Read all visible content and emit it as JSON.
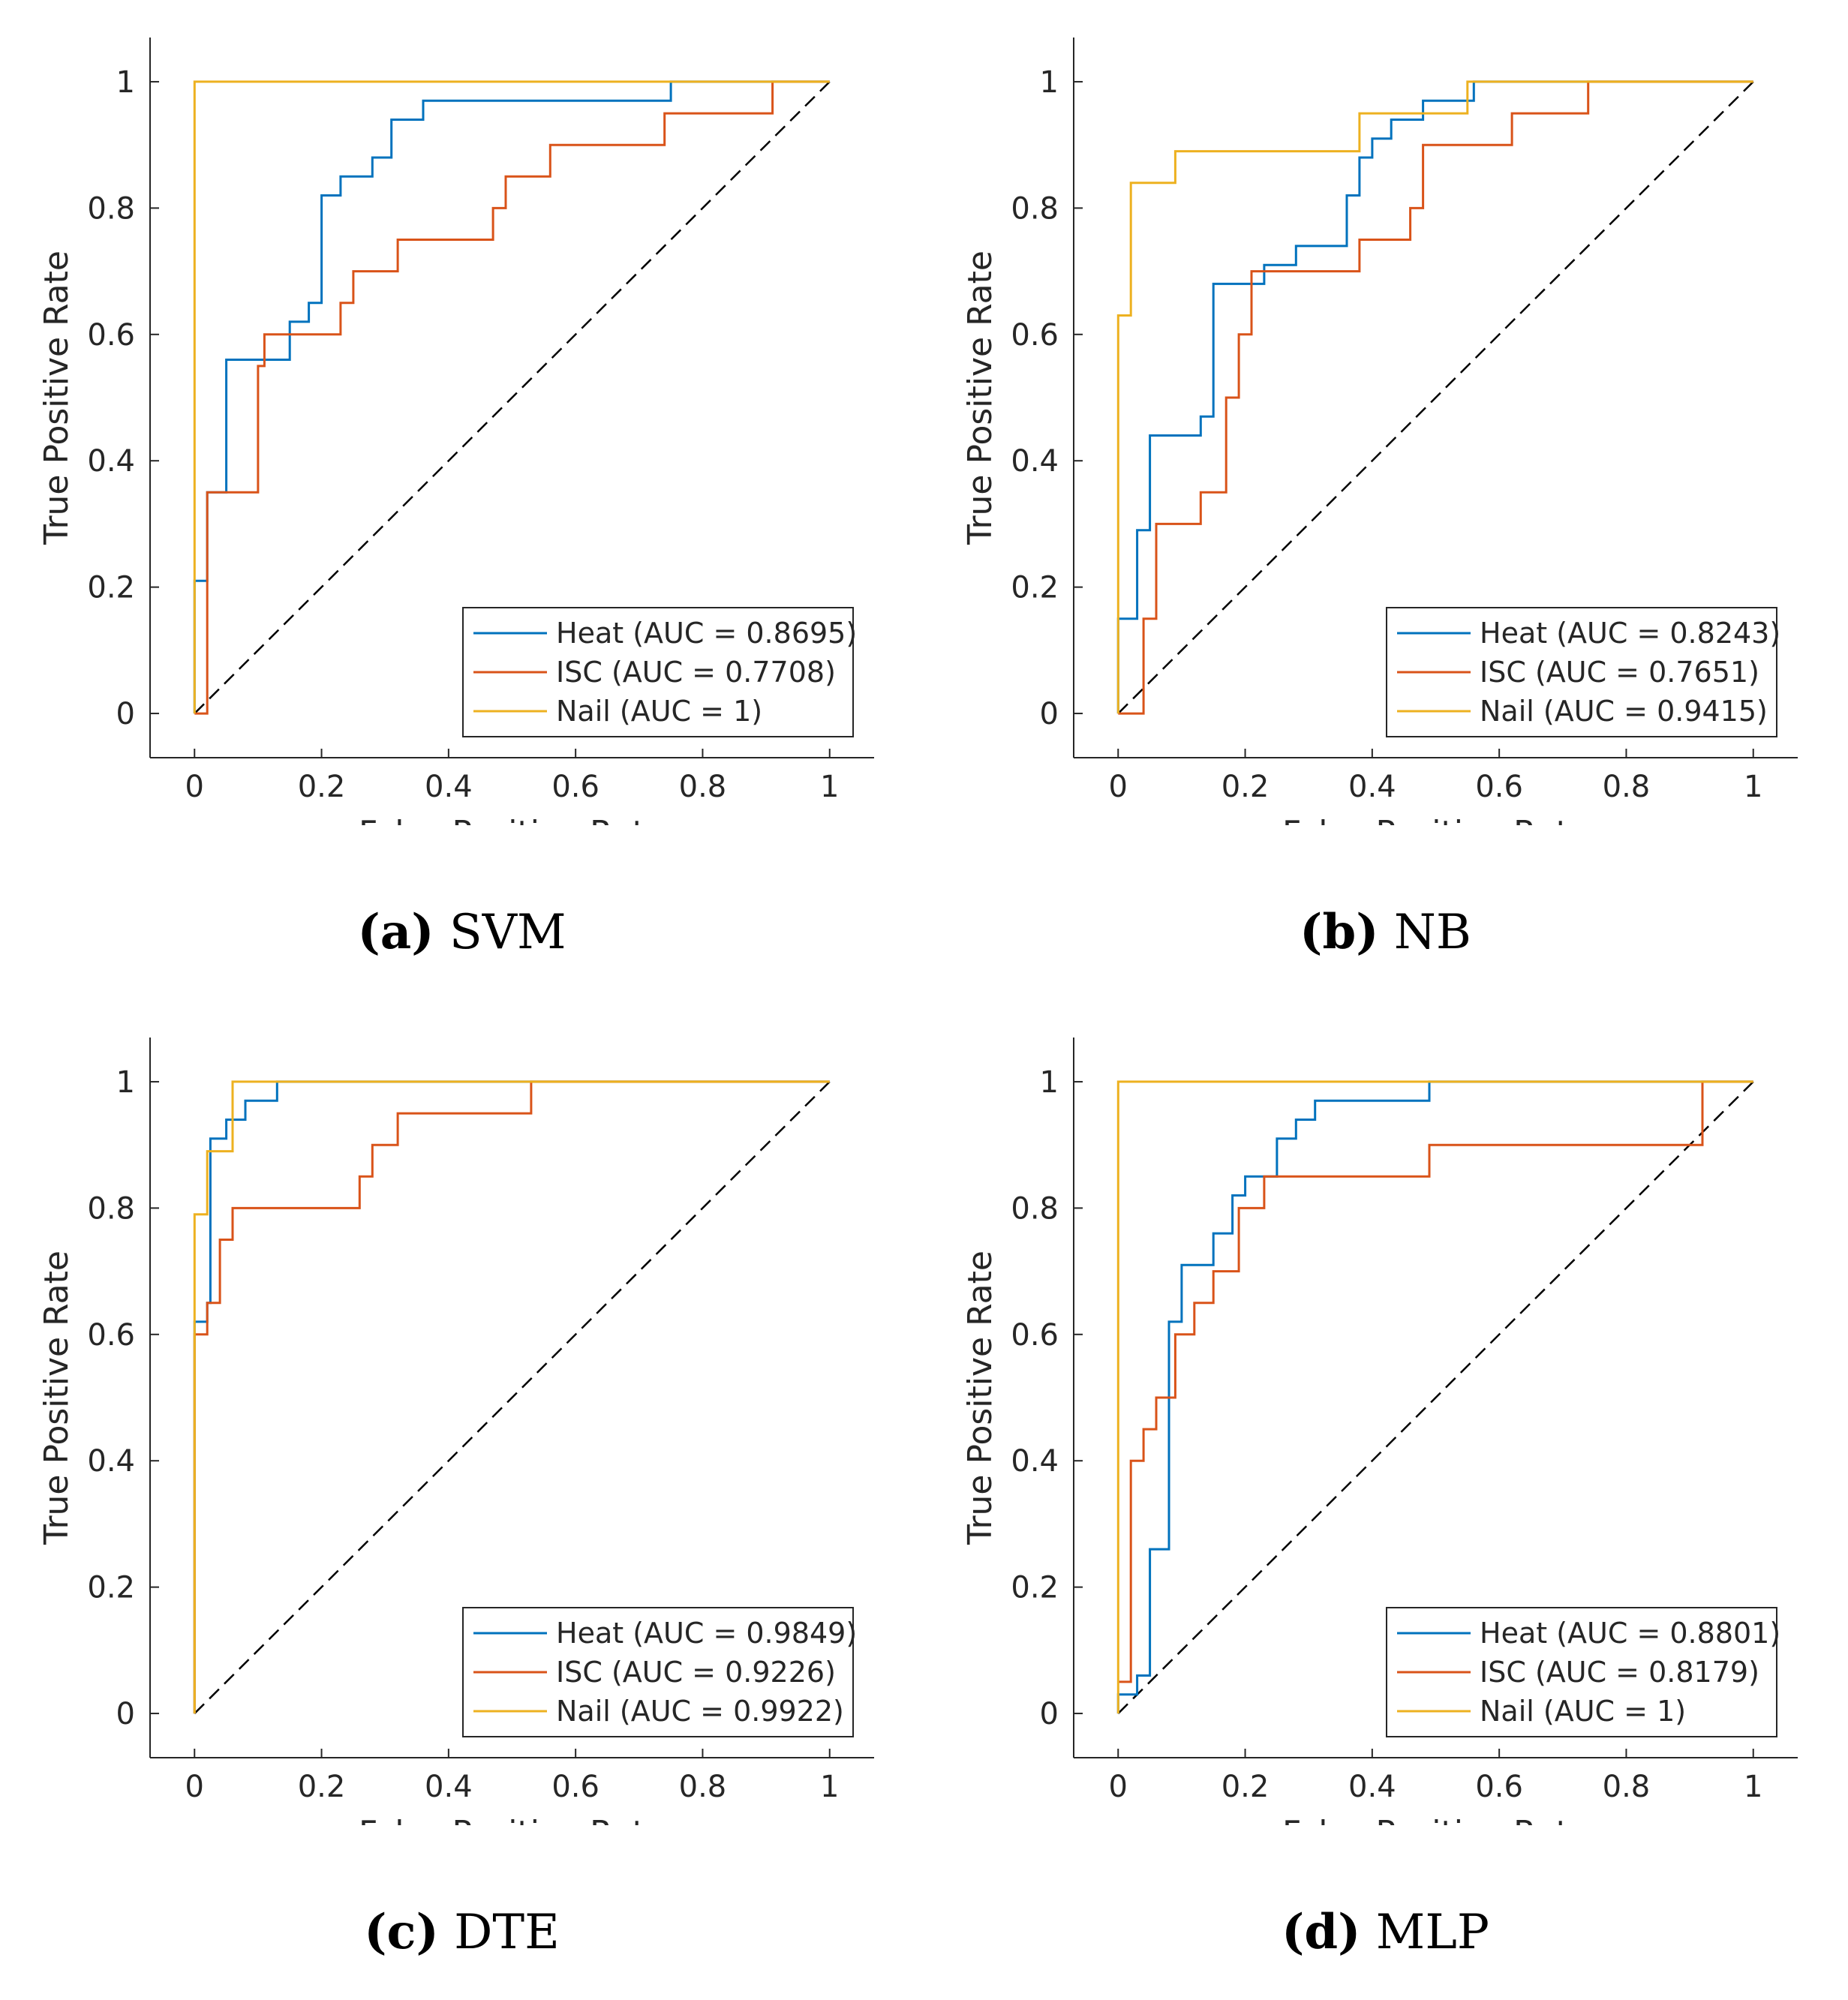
{
  "colors": {
    "heat": "#0072BD",
    "isc": "#D95319",
    "nail": "#EDB120",
    "diag": "#000000",
    "axis": "#262626"
  },
  "chart_data": [
    {
      "type": "line",
      "caption_letter": "(a)",
      "caption_title": "SVM",
      "xlabel": "False Positive Rate",
      "ylabel": "True Positive Rate",
      "xlim": [
        -0.07,
        1.07
      ],
      "ylim": [
        -0.07,
        1.07
      ],
      "xticks": [
        "0",
        "0.2",
        "0.4",
        "0.6",
        "0.8",
        "1"
      ],
      "yticks": [
        "0",
        "0.2",
        "0.4",
        "0.6",
        "0.8",
        "1"
      ],
      "legend_position": "bottom-right",
      "series": [
        {
          "name": "Heat (AUC = 0.8695)",
          "color_key": "heat",
          "x": [
            0,
            0,
            0.02,
            0.02,
            0.05,
            0.05,
            0.15,
            0.15,
            0.18,
            0.18,
            0.2,
            0.2,
            0.23,
            0.23,
            0.28,
            0.28,
            0.31,
            0.31,
            0.36,
            0.36,
            0.75,
            0.75,
            1
          ],
          "y": [
            0,
            0.21,
            0.21,
            0.35,
            0.35,
            0.56,
            0.56,
            0.62,
            0.62,
            0.65,
            0.65,
            0.82,
            0.82,
            0.85,
            0.85,
            0.88,
            0.88,
            0.94,
            0.94,
            0.97,
            0.97,
            1,
            1
          ]
        },
        {
          "name": "ISC (AUC = 0.7708)",
          "color_key": "isc",
          "x": [
            0,
            0.02,
            0.02,
            0.1,
            0.1,
            0.11,
            0.11,
            0.23,
            0.23,
            0.25,
            0.25,
            0.32,
            0.32,
            0.47,
            0.47,
            0.49,
            0.49,
            0.56,
            0.56,
            0.74,
            0.74,
            0.91,
            0.91,
            1
          ],
          "y": [
            0,
            0,
            0.35,
            0.35,
            0.55,
            0.55,
            0.6,
            0.6,
            0.65,
            0.65,
            0.7,
            0.7,
            0.75,
            0.75,
            0.8,
            0.8,
            0.85,
            0.85,
            0.9,
            0.9,
            0.95,
            0.95,
            1,
            1
          ]
        },
        {
          "name": "Nail (AUC = 1)",
          "color_key": "nail",
          "x": [
            0,
            0,
            1
          ],
          "y": [
            0,
            1,
            1
          ]
        }
      ]
    },
    {
      "type": "line",
      "caption_letter": "(b)",
      "caption_title": "NB",
      "xlabel": "False Positive Rate",
      "ylabel": "True Positive Rate",
      "xlim": [
        -0.07,
        1.07
      ],
      "ylim": [
        -0.07,
        1.07
      ],
      "xticks": [
        "0",
        "0.2",
        "0.4",
        "0.6",
        "0.8",
        "1"
      ],
      "yticks": [
        "0",
        "0.2",
        "0.4",
        "0.6",
        "0.8",
        "1"
      ],
      "legend_position": "bottom-right",
      "series": [
        {
          "name": "Heat (AUC = 0.8243)",
          "color_key": "heat",
          "x": [
            0,
            0,
            0.03,
            0.03,
            0.05,
            0.05,
            0.13,
            0.13,
            0.15,
            0.15,
            0.23,
            0.23,
            0.28,
            0.28,
            0.36,
            0.36,
            0.38,
            0.38,
            0.4,
            0.4,
            0.43,
            0.43,
            0.48,
            0.48,
            0.56,
            0.56,
            1
          ],
          "y": [
            0,
            0.15,
            0.15,
            0.29,
            0.29,
            0.44,
            0.44,
            0.47,
            0.47,
            0.68,
            0.68,
            0.71,
            0.71,
            0.74,
            0.74,
            0.82,
            0.82,
            0.88,
            0.88,
            0.91,
            0.91,
            0.94,
            0.94,
            0.97,
            0.97,
            1,
            1
          ]
        },
        {
          "name": "ISC (AUC = 0.7651)",
          "color_key": "isc",
          "x": [
            0,
            0.04,
            0.04,
            0.06,
            0.06,
            0.13,
            0.13,
            0.17,
            0.17,
            0.19,
            0.19,
            0.21,
            0.21,
            0.38,
            0.38,
            0.46,
            0.46,
            0.48,
            0.48,
            0.62,
            0.62,
            0.74,
            0.74,
            1
          ],
          "y": [
            0,
            0,
            0.15,
            0.15,
            0.3,
            0.3,
            0.35,
            0.35,
            0.5,
            0.5,
            0.6,
            0.6,
            0.7,
            0.7,
            0.75,
            0.75,
            0.8,
            0.8,
            0.9,
            0.9,
            0.95,
            0.95,
            1,
            1
          ]
        },
        {
          "name": "Nail (AUC = 0.9415)",
          "color_key": "nail",
          "x": [
            0,
            0,
            0.02,
            0.02,
            0.09,
            0.09,
            0.38,
            0.38,
            0.55,
            0.55,
            1
          ],
          "y": [
            0,
            0.63,
            0.63,
            0.84,
            0.84,
            0.89,
            0.89,
            0.95,
            0.95,
            1,
            1
          ]
        }
      ]
    },
    {
      "type": "line",
      "caption_letter": "(c)",
      "caption_title": "DTE",
      "xlabel": "False Positive Rate",
      "ylabel": "True Positive Rate",
      "xlim": [
        -0.07,
        1.07
      ],
      "ylim": [
        -0.07,
        1.07
      ],
      "xticks": [
        "0",
        "0.2",
        "0.4",
        "0.6",
        "0.8",
        "1"
      ],
      "yticks": [
        "0",
        "0.2",
        "0.4",
        "0.6",
        "0.8",
        "1"
      ],
      "legend_position": "bottom-right",
      "series": [
        {
          "name": "Heat (AUC = 0.9849)",
          "color_key": "heat",
          "x": [
            0,
            0,
            0.02,
            0.02,
            0.025,
            0.025,
            0.05,
            0.05,
            0.08,
            0.08,
            0.13,
            0.13,
            1
          ],
          "y": [
            0,
            0.62,
            0.62,
            0.65,
            0.65,
            0.91,
            0.91,
            0.94,
            0.94,
            0.97,
            0.97,
            1,
            1
          ]
        },
        {
          "name": "ISC (AUC = 0.9226)",
          "color_key": "isc",
          "x": [
            0,
            0,
            0.02,
            0.02,
            0.04,
            0.04,
            0.06,
            0.06,
            0.26,
            0.26,
            0.28,
            0.28,
            0.32,
            0.32,
            0.53,
            0.53,
            1
          ],
          "y": [
            0,
            0.6,
            0.6,
            0.65,
            0.65,
            0.75,
            0.75,
            0.8,
            0.8,
            0.85,
            0.85,
            0.9,
            0.9,
            0.95,
            0.95,
            1,
            1
          ]
        },
        {
          "name": "Nail (AUC = 0.9922)",
          "color_key": "nail",
          "x": [
            0,
            0,
            0.02,
            0.02,
            0.06,
            0.06,
            1
          ],
          "y": [
            0,
            0.79,
            0.79,
            0.89,
            0.89,
            1,
            1
          ]
        }
      ]
    },
    {
      "type": "line",
      "caption_letter": "(d)",
      "caption_title": "MLP",
      "xlabel": "False Positive Rate",
      "ylabel": "True Positive Rate",
      "xlim": [
        -0.07,
        1.07
      ],
      "ylim": [
        -0.07,
        1.07
      ],
      "xticks": [
        "0",
        "0.2",
        "0.4",
        "0.6",
        "0.8",
        "1"
      ],
      "yticks": [
        "0",
        "0.2",
        "0.4",
        "0.6",
        "0.8",
        "1"
      ],
      "legend_position": "bottom-right",
      "series": [
        {
          "name": "Heat (AUC = 0.8801)",
          "color_key": "heat",
          "x": [
            0,
            0,
            0.03,
            0.03,
            0.05,
            0.05,
            0.08,
            0.08,
            0.1,
            0.1,
            0.15,
            0.15,
            0.18,
            0.18,
            0.2,
            0.2,
            0.25,
            0.25,
            0.28,
            0.28,
            0.31,
            0.31,
            0.49,
            0.49,
            1
          ],
          "y": [
            0,
            0.03,
            0.03,
            0.06,
            0.06,
            0.26,
            0.26,
            0.62,
            0.62,
            0.71,
            0.71,
            0.76,
            0.76,
            0.82,
            0.82,
            0.85,
            0.85,
            0.91,
            0.91,
            0.94,
            0.94,
            0.97,
            0.97,
            1,
            1
          ]
        },
        {
          "name": "ISC (AUC = 0.8179)",
          "color_key": "isc",
          "x": [
            0,
            0.02,
            0.02,
            0.04,
            0.04,
            0.06,
            0.06,
            0.09,
            0.09,
            0.12,
            0.12,
            0.15,
            0.15,
            0.19,
            0.19,
            0.23,
            0.23,
            0.49,
            0.49,
            0.92,
            0.92,
            1
          ],
          "y": [
            0.05,
            0.05,
            0.4,
            0.4,
            0.45,
            0.45,
            0.5,
            0.5,
            0.6,
            0.6,
            0.65,
            0.65,
            0.7,
            0.7,
            0.8,
            0.8,
            0.85,
            0.85,
            0.9,
            0.9,
            1,
            1
          ]
        },
        {
          "name": "Nail (AUC = 1)",
          "color_key": "nail",
          "x": [
            0,
            0,
            1
          ],
          "y": [
            0,
            1,
            1
          ]
        }
      ]
    }
  ]
}
